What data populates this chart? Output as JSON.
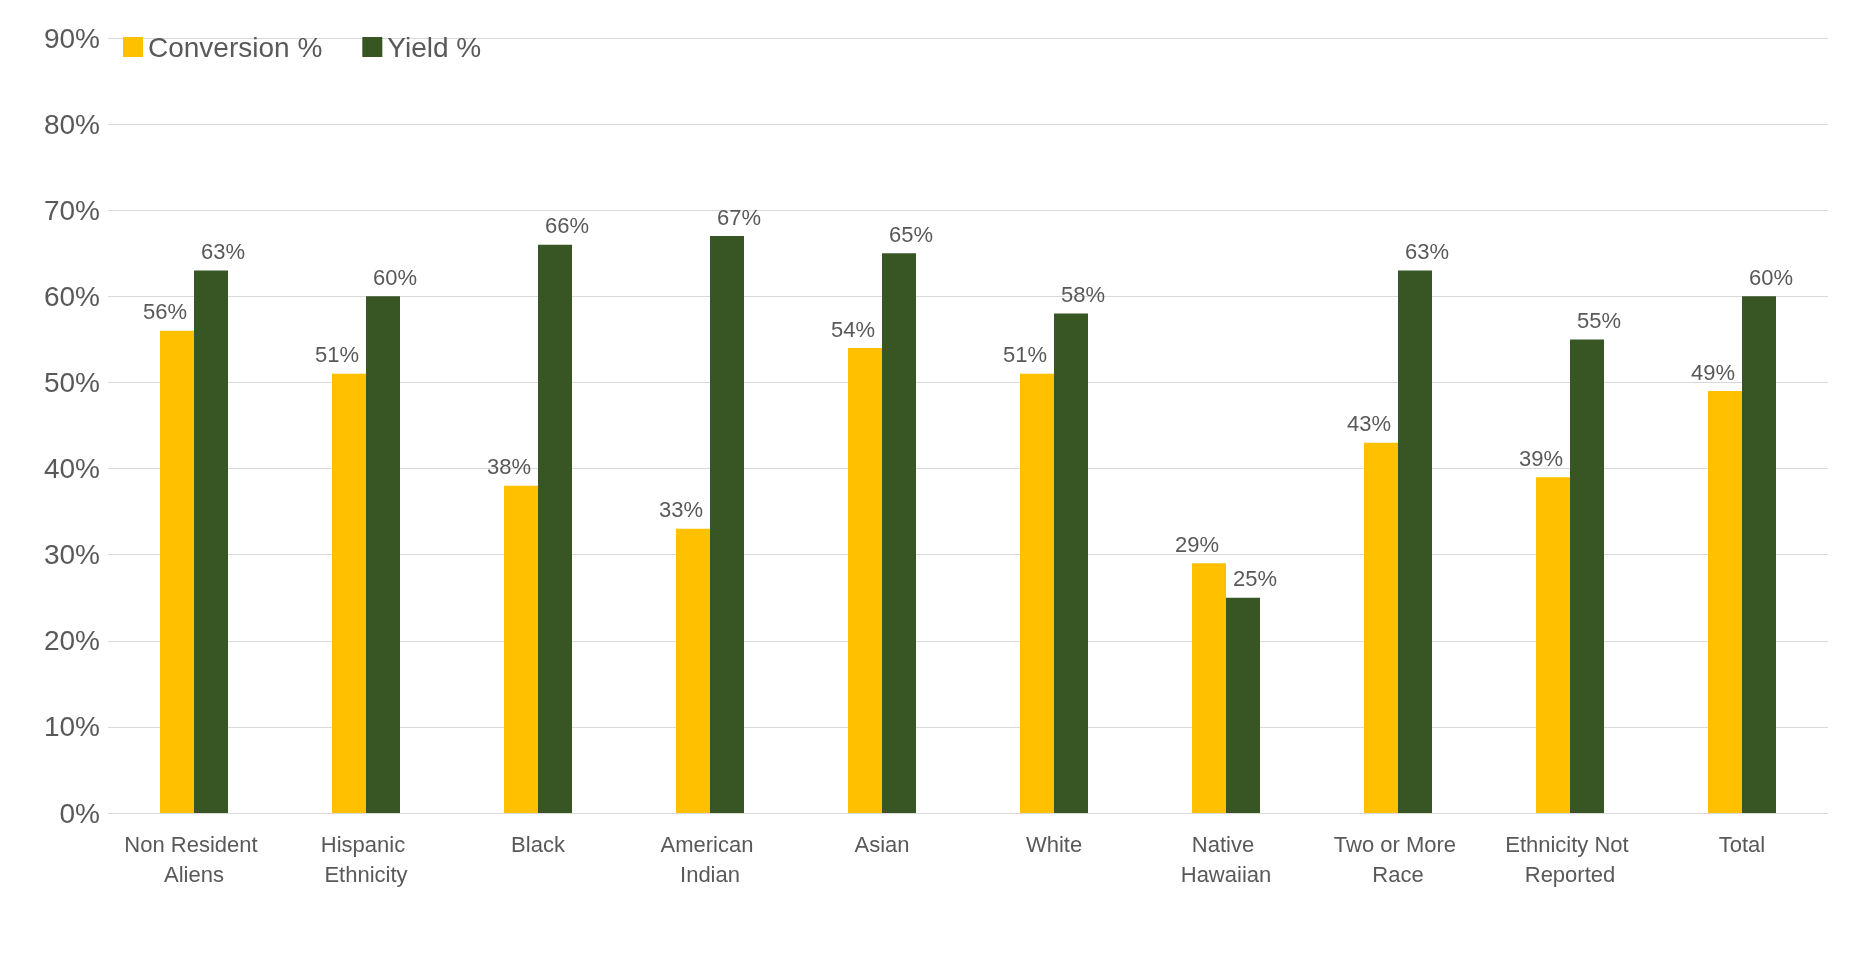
{
  "chart_data": {
    "type": "bar",
    "categories": [
      "Non Resident Aliens",
      "Hispanic Ethnicity",
      "Black",
      "American Indian",
      "Asian",
      "White",
      "Native Hawaiian",
      "Two or More Race",
      "Ethnicity Not Reported",
      "Total"
    ],
    "series": [
      {
        "name": "Conversion %",
        "color": "#ffc000",
        "values": [
          56,
          51,
          38,
          33,
          54,
          51,
          29,
          43,
          39,
          49
        ],
        "value_labels": [
          "56%",
          "51%",
          "38%",
          "33%",
          "54%",
          "51%",
          "29%",
          "43%",
          "39%",
          "49%"
        ]
      },
      {
        "name": "Yield %",
        "color": "#375623",
        "values": [
          63,
          60,
          66,
          67,
          65,
          58,
          25,
          63,
          55,
          60
        ],
        "value_labels": [
          "63%",
          "60%",
          "66%",
          "67%",
          "65%",
          "58%",
          "25%",
          "63%",
          "55%",
          "60%"
        ]
      }
    ],
    "ylim": [
      0,
      90
    ],
    "yticks": [
      {
        "value": 0,
        "label": "0%"
      },
      {
        "value": 10,
        "label": "10%"
      },
      {
        "value": 20,
        "label": "20%"
      },
      {
        "value": 30,
        "label": "30%"
      },
      {
        "value": 40,
        "label": "40%"
      },
      {
        "value": 50,
        "label": "50%"
      },
      {
        "value": 60,
        "label": "60%"
      },
      {
        "value": 70,
        "label": "70%"
      },
      {
        "value": 80,
        "label": "80%"
      },
      {
        "value": 90,
        "label": "90%"
      }
    ],
    "grid": "y",
    "legend": "top left"
  }
}
